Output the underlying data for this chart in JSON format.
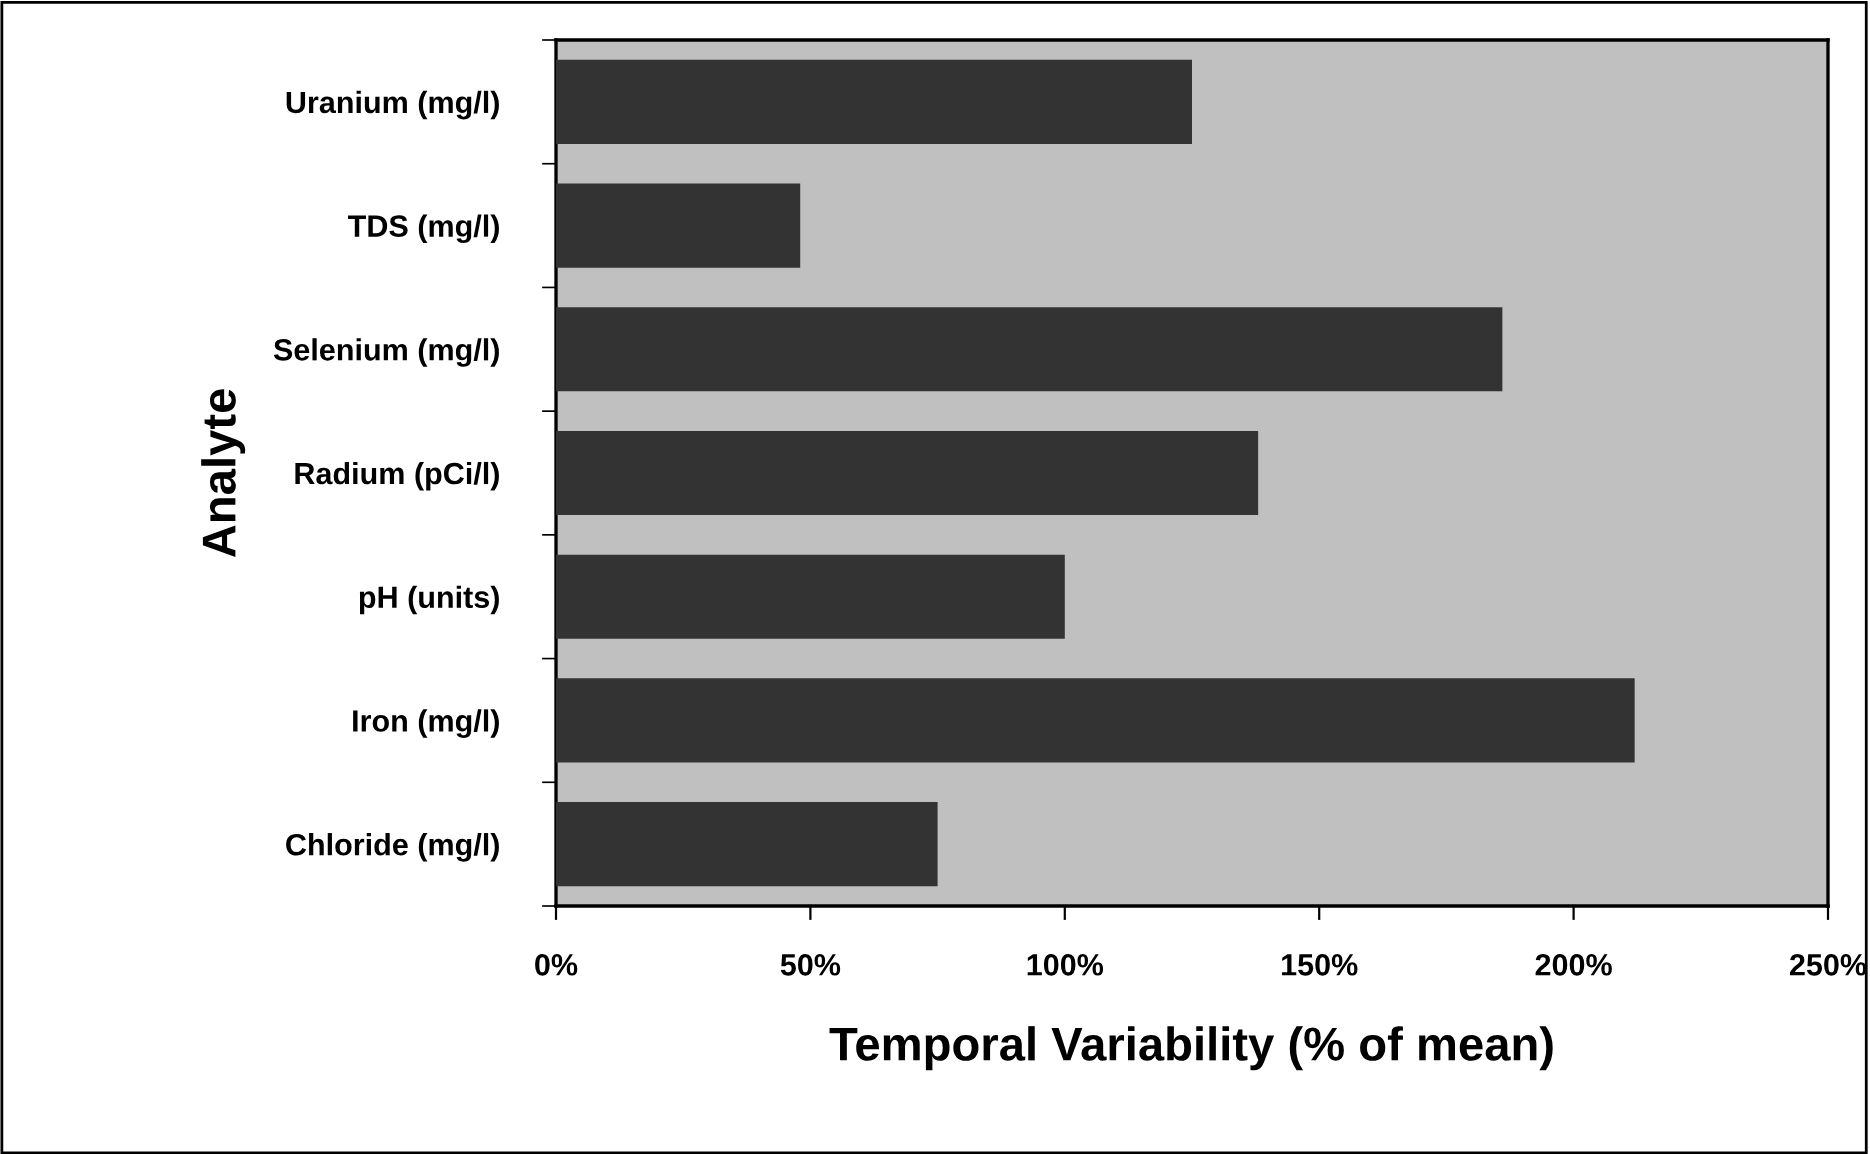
{
  "chart_data": {
    "type": "bar",
    "orientation": "horizontal",
    "xlabel": "Temporal Variability (% of mean)",
    "ylabel": "Analyte",
    "categories": [
      "Uranium (mg/l)",
      "TDS (mg/l)",
      "Selenium (mg/l)",
      "Radium (pCi/l)",
      "pH (units)",
      "Iron (mg/l)",
      "Chloride (mg/l)"
    ],
    "values": [
      125,
      48,
      186,
      138,
      100,
      212,
      75
    ],
    "color": "#333333",
    "xlim": [
      0,
      250
    ],
    "xticks": [
      {
        "value": 0,
        "label": "0%"
      },
      {
        "value": 50,
        "label": "50%"
      },
      {
        "value": 100,
        "label": "100%"
      },
      {
        "value": 150,
        "label": "150%"
      },
      {
        "value": 200,
        "label": "200%"
      },
      {
        "value": 250,
        "label": "250%"
      }
    ],
    "grid": false,
    "legend": false
  }
}
